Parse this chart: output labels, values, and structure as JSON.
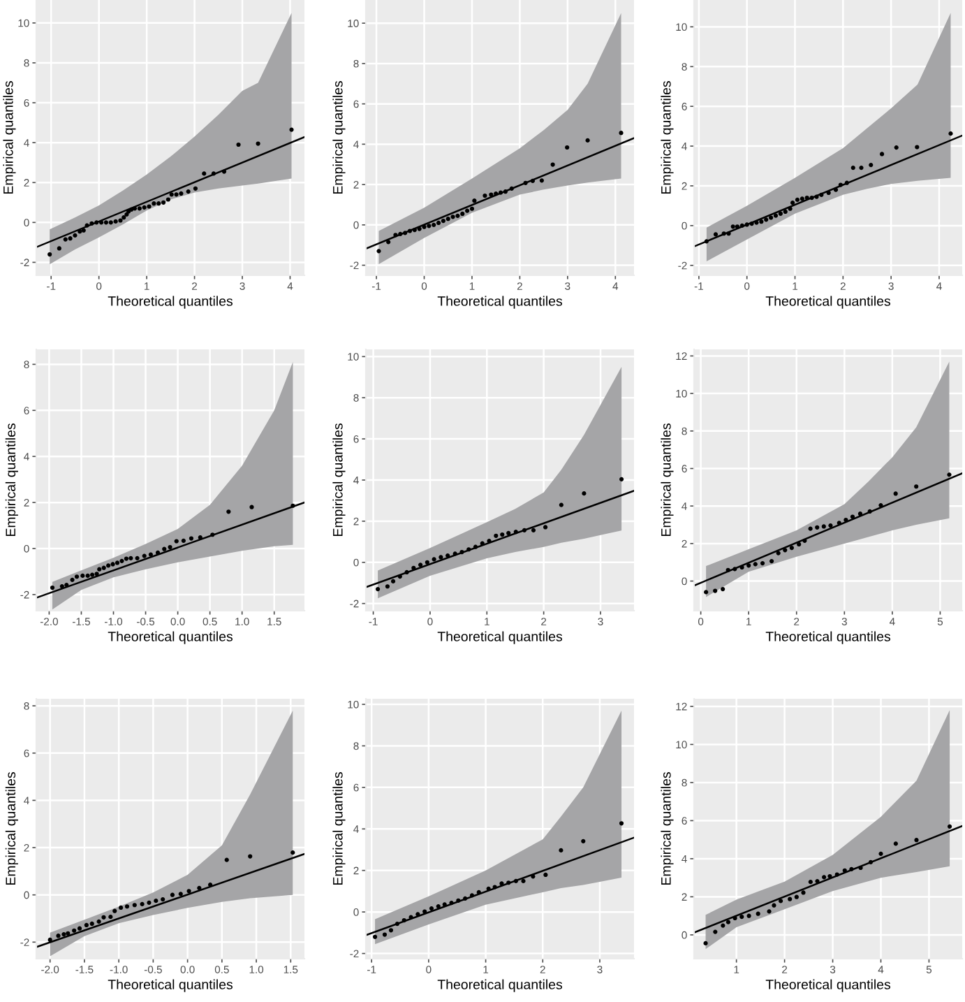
{
  "chart_data": [
    {
      "type": "scatter",
      "xlabel": "Theoretical quantiles",
      "ylabel": "Empirical quantiles",
      "xlim": [
        -1.31,
        4.3
      ],
      "ylim": [
        -2.65,
        11.15
      ],
      "xticks": [
        -1,
        0,
        1,
        2,
        3,
        4
      ],
      "yticks": [
        -2,
        0,
        2,
        4,
        6,
        8,
        10
      ],
      "grid": true,
      "series": [
        {
          "type": "line",
          "color": "#000000",
          "x": [
            -1.31,
            -1.03,
            -0.5,
            0,
            0.5,
            1,
            1.5,
            2,
            2.5,
            3,
            3.33,
            4.03,
            4.3
          ],
          "values": [
            -1.24,
            null,
            null,
            null,
            null,
            null,
            null,
            null,
            null,
            null,
            null,
            null,
            4.28
          ],
          "lower": [
            null,
            -2.1,
            -1.35,
            -0.75,
            -0.1,
            0.6,
            1.15,
            1.5,
            1.7,
            1.85,
            1.95,
            2.2,
            null
          ],
          "upper": [
            null,
            -0.35,
            0.25,
            0.85,
            1.6,
            2.4,
            3.3,
            4.3,
            5.4,
            6.6,
            7.0,
            10.5,
            null
          ]
        },
        {
          "marker": "circle",
          "color": "#000000",
          "x": [
            -1.03,
            -0.83,
            -0.7,
            -0.6,
            -0.5,
            -0.4,
            -0.32,
            -0.25,
            -0.15,
            -0.05,
            0.05,
            0.15,
            0.25,
            0.35,
            0.45,
            0.52,
            0.58,
            0.62,
            0.68,
            0.75,
            0.85,
            0.95,
            1.05,
            1.15,
            1.25,
            1.35,
            1.45,
            1.52,
            1.62,
            1.72,
            1.87,
            2.02,
            2.2,
            2.4,
            2.62,
            2.92,
            3.33,
            4.03
          ],
          "values": [
            -1.6,
            -1.3,
            -0.85,
            -0.8,
            -0.65,
            -0.45,
            -0.4,
            -0.15,
            -0.05,
            0.0,
            0.0,
            0.0,
            0.0,
            0.05,
            0.1,
            0.25,
            0.4,
            0.55,
            0.65,
            0.7,
            0.7,
            0.75,
            0.8,
            0.95,
            0.95,
            1.0,
            1.15,
            1.4,
            1.4,
            1.45,
            1.55,
            1.7,
            2.45,
            2.45,
            2.55,
            3.9,
            3.95,
            4.65
          ]
        }
      ]
    },
    {
      "type": "scatter",
      "xlabel": "Theoretical quantiles",
      "ylabel": "Empirical quantiles",
      "xlim": [
        -1.22,
        4.39
      ],
      "ylim": [
        -2.5,
        11.15
      ],
      "xticks": [
        -1,
        0,
        1,
        2,
        3,
        4
      ],
      "yticks": [
        -2,
        0,
        2,
        4,
        6,
        8,
        10
      ],
      "grid": true,
      "series": [
        {
          "type": "line",
          "color": "#000000",
          "x": [
            -1.22,
            -0.95,
            0,
            1,
            2,
            2.5,
            3,
            3.42,
            4.12,
            4.39
          ],
          "values": [
            -1.18,
            null,
            null,
            null,
            null,
            null,
            null,
            null,
            null,
            4.3
          ],
          "lower": [
            null,
            -1.95,
            -0.65,
            0.6,
            1.5,
            1.75,
            1.95,
            2.1,
            2.3,
            null
          ],
          "upper": [
            null,
            -0.3,
            0.85,
            2.3,
            3.8,
            4.7,
            5.7,
            7.0,
            10.5,
            null
          ]
        },
        {
          "marker": "circle",
          "color": "#000000",
          "x": [
            -0.95,
            -0.75,
            -0.6,
            -0.5,
            -0.4,
            -0.3,
            -0.2,
            -0.1,
            0,
            0.1,
            0.2,
            0.3,
            0.4,
            0.5,
            0.6,
            0.7,
            0.8,
            0.9,
            1.0,
            1.05,
            1.27,
            1.4,
            1.5,
            1.6,
            1.7,
            1.83,
            2.12,
            2.27,
            2.46,
            2.69,
            2.99,
            3.42,
            4.12
          ],
          "values": [
            -1.3,
            -0.85,
            -0.5,
            -0.45,
            -0.4,
            -0.3,
            -0.25,
            -0.2,
            -0.1,
            -0.05,
            0.0,
            0.1,
            0.2,
            0.3,
            0.4,
            0.45,
            0.55,
            0.7,
            0.8,
            1.2,
            1.45,
            1.5,
            1.55,
            1.6,
            1.65,
            1.8,
            2.08,
            2.18,
            2.2,
            2.99,
            3.84,
            4.19,
            4.56
          ]
        }
      ]
    },
    {
      "type": "scatter",
      "xlabel": "Theoretical quantiles",
      "ylabel": "Empirical quantiles",
      "xlim": [
        -1.1,
        4.48
      ],
      "ylim": [
        -2.5,
        11.35
      ],
      "xticks": [
        -1,
        0,
        1,
        2,
        3,
        4
      ],
      "yticks": [
        -2,
        0,
        2,
        4,
        6,
        8,
        10
      ],
      "grid": true,
      "series": [
        {
          "type": "line",
          "color": "#000000",
          "x": [
            -1.1,
            -0.84,
            0,
            1,
            2,
            2.5,
            3,
            3.55,
            4.24,
            4.48
          ],
          "values": [
            -1.05,
            null,
            null,
            null,
            null,
            null,
            null,
            null,
            null,
            4.53
          ],
          "lower": [
            null,
            -1.8,
            -0.7,
            0.6,
            1.55,
            1.85,
            2.1,
            2.25,
            2.4,
            null
          ],
          "upper": [
            null,
            -0.1,
            1.0,
            2.4,
            3.9,
            4.9,
            5.9,
            7.1,
            10.7,
            null
          ]
        },
        {
          "marker": "circle",
          "color": "#000000",
          "x": [
            -0.84,
            -0.65,
            -0.48,
            -0.38,
            -0.29,
            -0.2,
            -0.1,
            0,
            0.1,
            0.2,
            0.3,
            0.4,
            0.5,
            0.6,
            0.7,
            0.8,
            0.9,
            0.95,
            1.05,
            1.15,
            1.25,
            1.35,
            1.45,
            1.55,
            1.7,
            1.85,
            1.95,
            2.08,
            2.21,
            2.38,
            2.58,
            2.81,
            3.11,
            3.54,
            4.24
          ],
          "values": [
            -0.79,
            -0.44,
            -0.4,
            -0.4,
            -0.05,
            -0.05,
            0.0,
            0.05,
            0.1,
            0.15,
            0.2,
            0.3,
            0.4,
            0.5,
            0.6,
            0.7,
            0.85,
            1.15,
            1.3,
            1.35,
            1.4,
            1.4,
            1.45,
            1.55,
            1.65,
            1.8,
            2.05,
            2.15,
            2.91,
            2.91,
            3.05,
            3.6,
            3.93,
            3.95,
            4.63
          ]
        }
      ]
    },
    {
      "type": "scatter",
      "xlabel": "Theoretical quantiles",
      "ylabel": "Empirical quantiles",
      "xlim": [
        -2.2,
        1.97
      ],
      "ylim": [
        -2.7,
        8.65
      ],
      "xticks": [
        {
          "value": -2,
          "label": "-2.0"
        },
        {
          "value": -1.5,
          "label": "-1.5"
        },
        {
          "value": -1,
          "label": "-1.0"
        },
        {
          "value": -0.5,
          "label": "-0.5"
        },
        {
          "value": 0,
          "label": "0.0"
        },
        {
          "value": 0.5,
          "label": "0.5"
        },
        {
          "value": 1,
          "label": "1.0"
        },
        {
          "value": 1.5,
          "label": "1.5"
        }
      ],
      "yticks": [
        -2,
        0,
        2,
        4,
        6,
        8
      ],
      "grid": true,
      "series": [
        {
          "type": "line",
          "color": "#000000",
          "x": [
            -2.2,
            -1.95,
            -1.5,
            -1,
            -0.5,
            0,
            0.5,
            1,
            1.5,
            1.79,
            1.97
          ],
          "values": [
            -2.14,
            null,
            null,
            null,
            null,
            null,
            null,
            null,
            null,
            null,
            2.0
          ],
          "lower": [
            null,
            -2.65,
            -1.8,
            -1.25,
            -0.9,
            -0.6,
            -0.35,
            -0.1,
            0.1,
            0.16,
            null
          ],
          "upper": [
            null,
            -1.45,
            -0.95,
            -0.4,
            0.2,
            0.85,
            1.9,
            3.6,
            6.0,
            8.1,
            null
          ]
        },
        {
          "marker": "circle",
          "color": "#000000",
          "x": [
            -1.95,
            -1.8,
            -1.73,
            -1.64,
            -1.57,
            -1.48,
            -1.4,
            -1.33,
            -1.26,
            -1.22,
            -1.15,
            -1.08,
            -1.01,
            -0.94,
            -0.87,
            -0.8,
            -0.73,
            -0.63,
            -0.52,
            -0.42,
            -0.31,
            -0.21,
            -0.12,
            -0.02,
            0.09,
            0.21,
            0.35,
            0.54,
            0.79,
            1.15,
            1.79
          ],
          "values": [
            -1.7,
            -1.64,
            -1.58,
            -1.36,
            -1.22,
            -1.18,
            -1.18,
            -1.14,
            -1.1,
            -0.9,
            -0.84,
            -0.74,
            -0.68,
            -0.62,
            -0.54,
            -0.44,
            -0.42,
            -0.42,
            -0.32,
            -0.26,
            -0.18,
            -0.02,
            0.06,
            0.32,
            0.34,
            0.44,
            0.48,
            0.6,
            1.6,
            1.8,
            1.86
          ]
        }
      ]
    },
    {
      "type": "scatter",
      "xlabel": "Theoretical quantiles",
      "ylabel": "Empirical quantiles",
      "xlim": [
        -1.13,
        3.59
      ],
      "ylim": [
        -2.35,
        10.35
      ],
      "xticks": [
        -1,
        0,
        1,
        2,
        3
      ],
      "yticks": [
        -2,
        0,
        2,
        4,
        6,
        8,
        10
      ],
      "grid": true,
      "series": [
        {
          "type": "line",
          "color": "#000000",
          "x": [
            -1.13,
            -0.92,
            0,
            1,
            1.5,
            2,
            2.31,
            2.71,
            3.37,
            3.59
          ],
          "values": [
            -1.21,
            null,
            null,
            null,
            null,
            null,
            null,
            null,
            null,
            3.48
          ],
          "lower": [
            null,
            -1.75,
            -0.65,
            0.2,
            0.5,
            0.75,
            0.95,
            1.15,
            1.55,
            null
          ],
          "upper": [
            null,
            -0.4,
            0.7,
            1.95,
            2.6,
            3.4,
            4.5,
            6.2,
            9.5,
            null
          ]
        },
        {
          "marker": "circle",
          "color": "#000000",
          "x": [
            -0.92,
            -0.75,
            -0.65,
            -0.53,
            -0.41,
            -0.29,
            -0.17,
            -0.05,
            0.07,
            0.19,
            0.31,
            0.44,
            0.56,
            0.68,
            0.8,
            0.92,
            1.04,
            1.16,
            1.27,
            1.38,
            1.51,
            1.66,
            1.82,
            2.03,
            2.31,
            2.71,
            3.37
          ],
          "values": [
            -1.3,
            -1.17,
            -0.92,
            -0.69,
            -0.48,
            -0.27,
            -0.12,
            0.0,
            0.15,
            0.25,
            0.33,
            0.42,
            0.5,
            0.63,
            0.75,
            0.92,
            1.04,
            1.29,
            1.35,
            1.42,
            1.48,
            1.56,
            1.56,
            1.71,
            2.79,
            3.35,
            4.04
          ]
        }
      ]
    },
    {
      "type": "scatter",
      "xlabel": "Theoretical quantiles",
      "ylabel": "Empirical quantiles",
      "xlim": [
        -0.14,
        5.46
      ],
      "ylim": [
        -1.58,
        12.35
      ],
      "xticks": [
        0,
        1,
        2,
        3,
        4,
        5
      ],
      "yticks": [
        0,
        2,
        4,
        6,
        8,
        10,
        12
      ],
      "grid": true,
      "series": [
        {
          "type": "line",
          "color": "#000000",
          "x": [
            -0.14,
            0.11,
            1,
            2,
            3,
            3.5,
            4,
            4.5,
            5.19,
            5.46
          ],
          "values": [
            -0.24,
            null,
            null,
            null,
            null,
            null,
            null,
            null,
            null,
            5.74
          ],
          "lower": [
            null,
            -0.85,
            0.5,
            1.3,
            2.0,
            2.35,
            2.7,
            3.0,
            3.35,
            null
          ],
          "upper": [
            null,
            0.8,
            1.7,
            2.7,
            4.1,
            5.3,
            6.6,
            8.2,
            11.7,
            null
          ]
        },
        {
          "marker": "circle",
          "color": "#000000",
          "x": [
            0.11,
            0.3,
            0.46,
            0.57,
            0.71,
            0.86,
            1.0,
            1.14,
            1.29,
            1.48,
            1.62,
            1.76,
            1.9,
            2.05,
            2.17,
            2.29,
            2.43,
            2.57,
            2.71,
            2.89,
            3.03,
            3.17,
            3.33,
            3.53,
            3.76,
            4.07,
            4.5,
            5.19
          ],
          "values": [
            -0.59,
            -0.52,
            -0.43,
            0.59,
            0.64,
            0.73,
            0.83,
            0.9,
            0.95,
            1.06,
            1.49,
            1.65,
            1.77,
            1.96,
            2.15,
            2.79,
            2.86,
            2.91,
            2.96,
            3.1,
            3.26,
            3.43,
            3.59,
            3.71,
            4.04,
            4.66,
            5.04,
            5.67
          ]
        }
      ]
    },
    {
      "type": "scatter",
      "xlabel": "Theoretical quantiles",
      "ylabel": "Empirical quantiles",
      "xlim": [
        -2.2,
        1.7
      ],
      "ylim": [
        -2.7,
        8.3
      ],
      "xticks": [
        {
          "value": -2,
          "label": "-2.0"
        },
        {
          "value": -1.5,
          "label": "-1.5"
        },
        {
          "value": -1,
          "label": "-1.0"
        },
        {
          "value": -0.5,
          "label": "-0.5"
        },
        {
          "value": 0,
          "label": "0.0"
        },
        {
          "value": 0.5,
          "label": "0.5"
        },
        {
          "value": 1,
          "label": "1.0"
        },
        {
          "value": 1.5,
          "label": "1.5"
        }
      ],
      "yticks": [
        -2,
        0,
        2,
        4,
        6,
        8
      ],
      "grid": true,
      "series": [
        {
          "type": "line",
          "color": "#000000",
          "x": [
            -2.2,
            -2.0,
            -1.5,
            -1,
            -0.5,
            0,
            0.5,
            0.91,
            1.53,
            1.7
          ],
          "values": [
            -2.21,
            null,
            null,
            null,
            null,
            null,
            null,
            null,
            null,
            1.73
          ],
          "lower": [
            null,
            -2.6,
            -1.75,
            -1.2,
            -0.85,
            -0.55,
            -0.3,
            -0.14,
            0.0,
            null
          ],
          "upper": [
            null,
            -1.6,
            -1.05,
            -0.5,
            0.1,
            0.85,
            2.1,
            4.25,
            7.8,
            null
          ]
        },
        {
          "marker": "circle",
          "color": "#000000",
          "x": [
            -2.0,
            -1.88,
            -1.8,
            -1.74,
            -1.65,
            -1.57,
            -1.47,
            -1.39,
            -1.29,
            -1.22,
            -1.12,
            -1.06,
            -0.97,
            -0.88,
            -0.77,
            -0.66,
            -0.56,
            -0.46,
            -0.36,
            -0.22,
            -0.1,
            0.02,
            0.17,
            0.33,
            0.57,
            0.91,
            1.53
          ],
          "values": [
            -1.9,
            -1.73,
            -1.67,
            -1.63,
            -1.51,
            -1.42,
            -1.28,
            -1.22,
            -1.13,
            -0.95,
            -0.93,
            -0.68,
            -0.54,
            -0.49,
            -0.43,
            -0.39,
            -0.33,
            -0.25,
            -0.19,
            0.0,
            0.04,
            0.16,
            0.29,
            0.43,
            1.48,
            1.63,
            1.79
          ]
        }
      ]
    },
    {
      "type": "scatter",
      "xlabel": "Theoretical quantiles",
      "ylabel": "Empirical quantiles",
      "xlim": [
        -1.1,
        3.6
      ],
      "ylim": [
        -2.25,
        10.27
      ],
      "xticks": [
        -1,
        0,
        1,
        2,
        3
      ],
      "yticks": [
        -2,
        0,
        2,
        4,
        6,
        8,
        10
      ],
      "grid": true,
      "series": [
        {
          "type": "line",
          "color": "#000000",
          "x": [
            -1.1,
            -0.94,
            0,
            1,
            2,
            2.32,
            2.71,
            3,
            3.38,
            3.6
          ],
          "values": [
            -1.12,
            null,
            null,
            null,
            null,
            null,
            null,
            null,
            null,
            3.58
          ],
          "lower": [
            null,
            -1.55,
            -0.6,
            0.35,
            0.95,
            1.15,
            1.3,
            1.45,
            1.65,
            null
          ],
          "upper": [
            null,
            -0.35,
            0.75,
            2.0,
            3.5,
            4.6,
            6.0,
            7.6,
            9.7,
            null
          ]
        },
        {
          "marker": "circle",
          "color": "#000000",
          "x": [
            -0.94,
            -0.77,
            -0.66,
            -0.55,
            -0.43,
            -0.31,
            -0.19,
            -0.07,
            0.05,
            0.17,
            0.28,
            0.4,
            0.52,
            0.64,
            0.76,
            0.88,
            1.05,
            1.16,
            1.28,
            1.4,
            1.53,
            1.66,
            1.83,
            2.05,
            2.32,
            2.71,
            3.38
          ],
          "values": [
            -1.2,
            -1.09,
            -0.88,
            -0.57,
            -0.4,
            -0.25,
            -0.11,
            0.02,
            0.17,
            0.27,
            0.36,
            0.44,
            0.55,
            0.65,
            0.8,
            0.95,
            1.12,
            1.2,
            1.37,
            1.41,
            1.49,
            1.49,
            1.71,
            1.79,
            2.97,
            3.41,
            4.27
          ]
        }
      ]
    },
    {
      "type": "scatter",
      "xlabel": "Theoretical quantiles",
      "ylabel": "Empirical quantiles",
      "xlim": [
        0.12,
        5.69
      ],
      "ylim": [
        -1.25,
        12.4
      ],
      "xticks": [
        1,
        2,
        3,
        4,
        5
      ],
      "yticks": [
        0,
        2,
        4,
        6,
        8,
        10,
        12
      ],
      "grid": true,
      "series": [
        {
          "type": "line",
          "color": "#000000",
          "x": [
            0.12,
            0.36,
            1,
            2,
            3,
            4,
            4.74,
            5.43,
            5.69
          ],
          "values": [
            0.12,
            null,
            null,
            null,
            null,
            null,
            null,
            null,
            5.72
          ],
          "lower": [
            null,
            -0.75,
            0.4,
            1.35,
            2.3,
            3.0,
            3.3,
            3.6,
            null
          ],
          "upper": [
            null,
            1.05,
            1.85,
            2.8,
            4.2,
            6.2,
            8.1,
            11.8,
            null
          ]
        },
        {
          "marker": "circle",
          "color": "#000000",
          "x": [
            0.36,
            0.56,
            0.72,
            0.83,
            0.97,
            1.11,
            1.26,
            1.45,
            1.68,
            1.78,
            1.92,
            2.11,
            2.25,
            2.39,
            2.54,
            2.68,
            2.82,
            2.94,
            3.09,
            3.25,
            3.39,
            3.58,
            3.79,
            4.0,
            4.31,
            4.74,
            5.43
          ],
          "values": [
            -0.44,
            0.16,
            0.49,
            0.67,
            0.88,
            0.95,
            1.0,
            1.11,
            1.23,
            1.55,
            1.78,
            1.88,
            1.99,
            2.22,
            2.78,
            2.82,
            3.03,
            3.08,
            3.17,
            3.38,
            3.45,
            3.52,
            3.82,
            4.26,
            4.79,
            4.98,
            5.69
          ]
        }
      ]
    }
  ]
}
